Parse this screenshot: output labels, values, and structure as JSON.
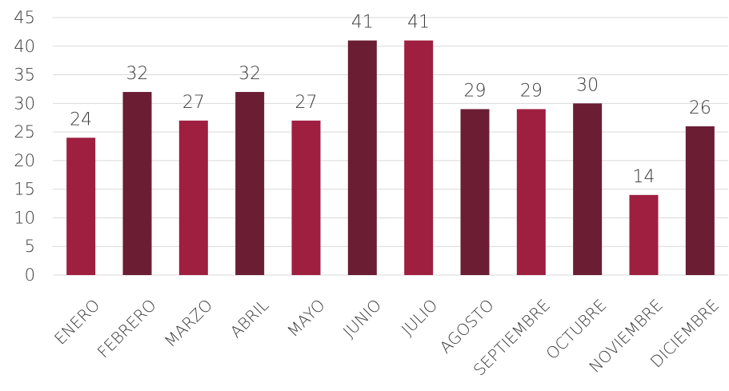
{
  "chart_data": {
    "type": "bar",
    "categories": [
      "ENERO",
      "FEBRERO",
      "MARZO",
      "ABRIL",
      "MAYO",
      "JUNIO",
      "JULIO",
      "AGOSTO",
      "SEPTIEMBRE",
      "OCTUBRE",
      "NOVIEMBRE",
      "DICIEMBRE"
    ],
    "values": [
      24,
      32,
      27,
      32,
      27,
      41,
      41,
      29,
      29,
      30,
      14,
      26
    ],
    "bar_colors": [
      "#9e1f40",
      "#6b1d33",
      "#9e1f40",
      "#6b1d33",
      "#9e1f40",
      "#6b1d33",
      "#9e1f40",
      "#6b1d33",
      "#9e1f40",
      "#6b1d33",
      "#9e1f40",
      "#6b1d33"
    ],
    "yticks": [
      0,
      5,
      10,
      15,
      20,
      25,
      30,
      35,
      40,
      45
    ],
    "ylim": [
      0,
      45
    ],
    "grid": true,
    "legend": "none",
    "title": "",
    "xlabel": "",
    "ylabel": ""
  }
}
